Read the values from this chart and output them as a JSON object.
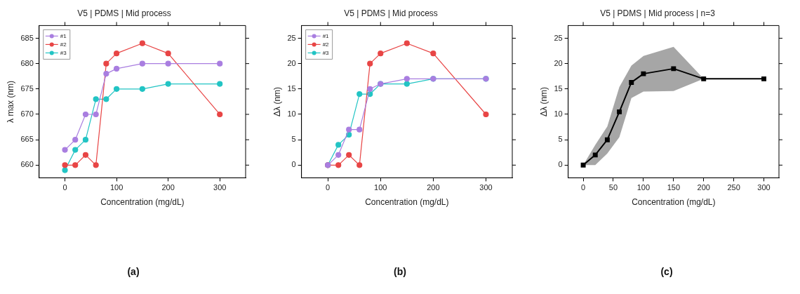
{
  "chart_data": [
    {
      "type": "line",
      "title": "V5 | PDMS | Mid process",
      "xlabel": "Concentration (mg/dL)",
      "ylabel": "λ max (nm)",
      "x": [
        0,
        20,
        40,
        60,
        80,
        100,
        150,
        200,
        300
      ],
      "xlim": [
        -50,
        350
      ],
      "xticks": [
        0,
        100,
        200,
        300
      ],
      "ylim": [
        657.5,
        687.5
      ],
      "yticks": [
        660,
        665,
        670,
        675,
        680,
        685
      ],
      "grid": false,
      "legend": "top left",
      "marker": "circle",
      "line_style": "solid",
      "annotations": [
        "(a)"
      ],
      "series": [
        {
          "name": "#1",
          "color": "#a97ee0",
          "values": [
            663,
            665,
            670,
            670,
            678,
            679,
            680,
            680,
            680
          ]
        },
        {
          "name": "#2",
          "color": "#e84545",
          "values": [
            660,
            660,
            662,
            660,
            680,
            682,
            684,
            682,
            670
          ]
        },
        {
          "name": "#3",
          "color": "#22c4c4",
          "values": [
            659,
            663,
            665,
            673,
            673,
            675,
            675,
            676,
            676
          ]
        }
      ]
    },
    {
      "type": "line",
      "title": "V5 | PDMS | Mid process",
      "xlabel": "Concentration (mg/dL)",
      "ylabel": "Δλ (nm)",
      "x": [
        0,
        20,
        40,
        60,
        80,
        100,
        150,
        200,
        300
      ],
      "xlim": [
        -50,
        350
      ],
      "xticks": [
        0,
        100,
        200,
        300
      ],
      "ylim": [
        -2.5,
        27.5
      ],
      "yticks": [
        0,
        5,
        10,
        15,
        20,
        25
      ],
      "grid": false,
      "legend": "top left",
      "marker": "circle",
      "line_style": "solid",
      "annotations": [
        "(b)"
      ],
      "series": [
        {
          "name": "#1",
          "color": "#a97ee0",
          "values": [
            0,
            2,
            7,
            7,
            15,
            16,
            17,
            17,
            17
          ]
        },
        {
          "name": "#2",
          "color": "#e84545",
          "values": [
            0,
            0,
            2,
            0,
            20,
            22,
            24,
            22,
            10
          ]
        },
        {
          "name": "#3",
          "color": "#22c4c4",
          "values": [
            0,
            4,
            6,
            14,
            14,
            16,
            16,
            17,
            17
          ]
        }
      ]
    },
    {
      "type": "line",
      "title": "V5 | PDMS | Mid process | n=3",
      "xlabel": "Concentration (mg/dL)",
      "ylabel": "Δλ (nm)",
      "x": [
        0,
        20,
        40,
        60,
        80,
        100,
        150,
        200,
        300
      ],
      "xlim": [
        -25,
        325
      ],
      "xticks": [
        0,
        50,
        100,
        150,
        200,
        250,
        300
      ],
      "ylim": [
        -2.5,
        27.5
      ],
      "yticks": [
        0,
        5,
        10,
        15,
        20,
        25
      ],
      "grid": false,
      "legend": false,
      "marker": "square",
      "line_style": "solid",
      "annotations": [
        "(c)"
      ],
      "series": [
        {
          "color": "#000000",
          "values": [
            0,
            2,
            5,
            10.5,
            16.3,
            18,
            19,
            17,
            17
          ],
          "lower": [
            0,
            0,
            2.3,
            5.5,
            13.2,
            14.5,
            14.6,
            17,
            17
          ],
          "upper": [
            0,
            4,
            7.6,
            15.4,
            19.6,
            21.5,
            23.3,
            17,
            17
          ]
        }
      ]
    }
  ]
}
